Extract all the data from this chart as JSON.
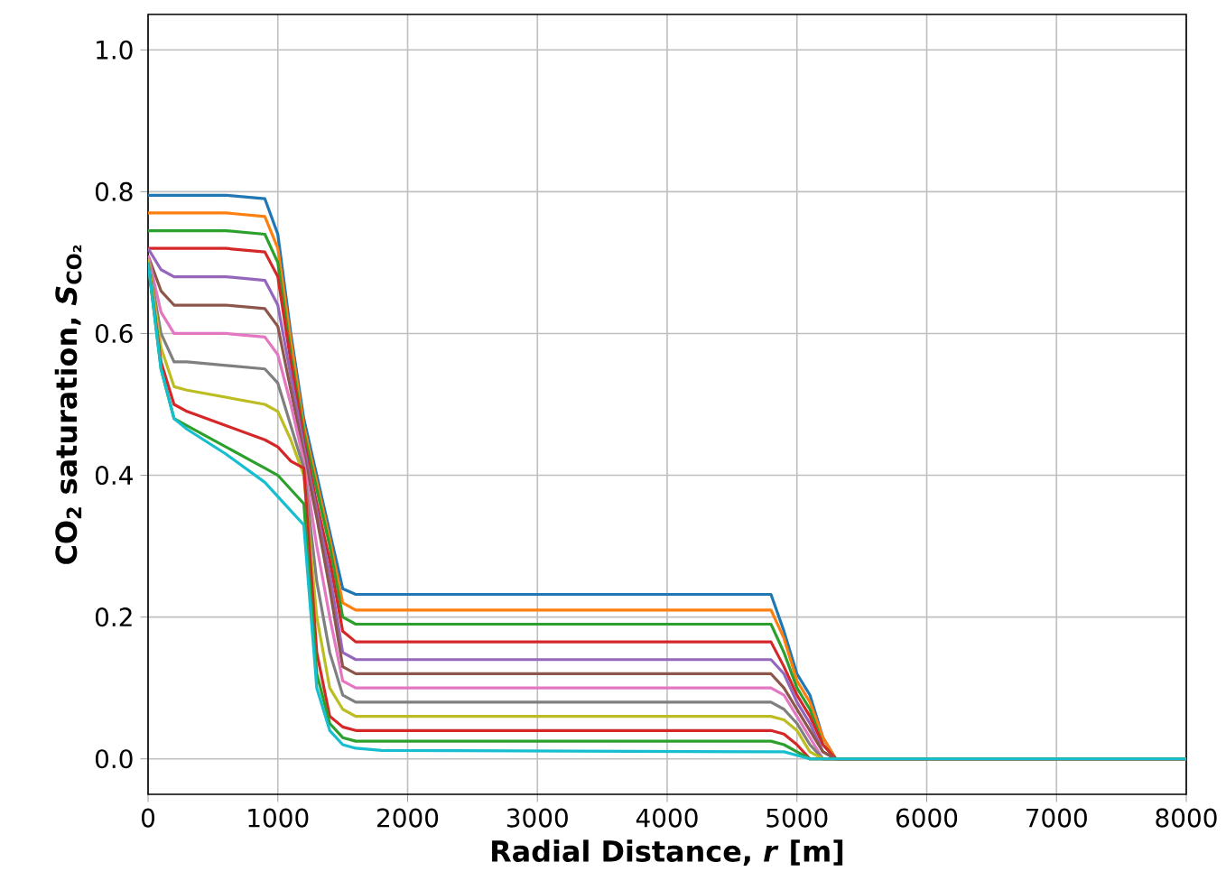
{
  "chart_data": {
    "type": "line",
    "xlabel": "Radial Distance, *r* [m]",
    "ylabel": "CO$_{2}$ saturation, *S*$_{CO₂}$",
    "x": [
      0,
      100,
      200,
      300,
      600,
      900,
      1000,
      1100,
      1200,
      1300,
      1400,
      1500,
      1600,
      1800,
      4800,
      4900,
      5000,
      5100,
      5200,
      5300,
      8000
    ],
    "xlim": [
      0,
      8000
    ],
    "ylim": [
      -0.05,
      1.05
    ],
    "xticks": [
      0,
      1000,
      2000,
      3000,
      4000,
      5000,
      6000,
      7000,
      8000
    ],
    "yticks": [
      {
        "value": 0,
        "label": "0.0"
      },
      {
        "value": 0.2,
        "label": "0.2"
      },
      {
        "value": 0.4,
        "label": "0.4"
      },
      {
        "value": 0.6,
        "label": "0.6"
      },
      {
        "value": 0.8,
        "label": "0.8"
      },
      {
        "value": 1.0,
        "label": "1.0"
      }
    ],
    "grid": true,
    "series": [
      {
        "color": "#1f77b4",
        "values": [
          0.795,
          0.795,
          0.795,
          0.795,
          0.795,
          0.79,
          0.74,
          0.6,
          0.48,
          0.4,
          0.32,
          0.24,
          0.232,
          0.232,
          0.232,
          0.18,
          0.12,
          0.09,
          0.03,
          0,
          0
        ]
      },
      {
        "color": "#ff7f0e",
        "values": [
          0.77,
          0.77,
          0.77,
          0.77,
          0.77,
          0.765,
          0.72,
          0.59,
          0.47,
          0.39,
          0.31,
          0.22,
          0.21,
          0.21,
          0.21,
          0.17,
          0.11,
          0.08,
          0.03,
          0,
          0
        ]
      },
      {
        "color": "#2ca02c",
        "values": [
          0.745,
          0.745,
          0.745,
          0.745,
          0.745,
          0.74,
          0.7,
          0.57,
          0.46,
          0.38,
          0.3,
          0.2,
          0.19,
          0.19,
          0.19,
          0.15,
          0.1,
          0.07,
          0.02,
          0,
          0
        ]
      },
      {
        "color": "#d62728",
        "values": [
          0.72,
          0.72,
          0.72,
          0.72,
          0.72,
          0.715,
          0.68,
          0.56,
          0.45,
          0.36,
          0.28,
          0.18,
          0.165,
          0.165,
          0.165,
          0.13,
          0.09,
          0.06,
          0.02,
          0,
          0
        ]
      },
      {
        "color": "#9467bd",
        "values": [
          0.72,
          0.69,
          0.68,
          0.68,
          0.68,
          0.675,
          0.64,
          0.54,
          0.44,
          0.35,
          0.26,
          0.15,
          0.14,
          0.14,
          0.14,
          0.12,
          0.08,
          0.05,
          0.01,
          0,
          0
        ]
      },
      {
        "color": "#8c564b",
        "values": [
          0.71,
          0.66,
          0.64,
          0.64,
          0.64,
          0.635,
          0.61,
          0.52,
          0.43,
          0.34,
          0.24,
          0.13,
          0.12,
          0.12,
          0.12,
          0.1,
          0.07,
          0.04,
          0.01,
          0,
          0
        ]
      },
      {
        "color": "#e377c2",
        "values": [
          0.71,
          0.63,
          0.6,
          0.6,
          0.6,
          0.595,
          0.57,
          0.5,
          0.42,
          0.3,
          0.2,
          0.11,
          0.1,
          0.1,
          0.1,
          0.09,
          0.06,
          0.03,
          0,
          0,
          0
        ]
      },
      {
        "color": "#7f7f7f",
        "values": [
          0.705,
          0.6,
          0.56,
          0.56,
          0.555,
          0.55,
          0.53,
          0.47,
          0.41,
          0.25,
          0.15,
          0.09,
          0.08,
          0.08,
          0.08,
          0.07,
          0.05,
          0.02,
          0,
          0,
          0
        ]
      },
      {
        "color": "#bcbd22",
        "values": [
          0.705,
          0.58,
          0.525,
          0.52,
          0.51,
          0.5,
          0.49,
          0.45,
          0.4,
          0.2,
          0.1,
          0.07,
          0.06,
          0.06,
          0.06,
          0.055,
          0.04,
          0.01,
          0,
          0,
          0
        ]
      },
      {
        "color": "#d62728",
        "values": [
          0.7,
          0.56,
          0.5,
          0.49,
          0.47,
          0.45,
          0.44,
          0.42,
          0.41,
          0.15,
          0.06,
          0.045,
          0.04,
          0.04,
          0.04,
          0.035,
          0.02,
          0,
          0,
          0,
          0
        ]
      },
      {
        "color": "#2ca02c",
        "values": [
          0.7,
          0.55,
          0.48,
          0.47,
          0.44,
          0.41,
          0.4,
          0.38,
          0.36,
          0.12,
          0.05,
          0.03,
          0.025,
          0.025,
          0.025,
          0.02,
          0.01,
          0,
          0,
          0,
          0
        ]
      },
      {
        "color": "#17becf",
        "values": [
          0.7,
          0.55,
          0.48,
          0.465,
          0.43,
          0.39,
          0.37,
          0.35,
          0.33,
          0.1,
          0.04,
          0.02,
          0.015,
          0.012,
          0.01,
          0.01,
          0.005,
          0,
          0,
          0,
          0
        ]
      }
    ]
  }
}
